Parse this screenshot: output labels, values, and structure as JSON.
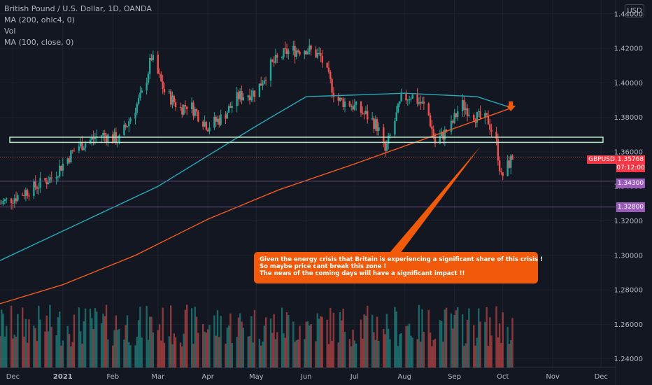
{
  "header": {
    "symbol_line": "British Pound / U.S. Dollar, 1D, OANDA",
    "indicators": [
      "MA (200, ohlc4, 0)",
      "Vol",
      "MA (100, close, 0)"
    ]
  },
  "currency_badge": "USD",
  "price_axis_ticks": [
    "1.44000",
    "1.42000",
    "1.40000",
    "1.38000",
    "1.36000",
    "1.34000",
    "1.32000",
    "1.30000",
    "1.28000",
    "1.26000",
    "1.24000"
  ],
  "time_axis_ticks": [
    "Dec",
    "2021",
    "Feb",
    "Mar",
    "Apr",
    "May",
    "Jun",
    "Jul",
    "Aug",
    "Sep",
    "Oct",
    "Nov",
    "Dec"
  ],
  "symbol_tag": "GBPUSD",
  "last_price": "1.35768",
  "countdown": "07:12:00",
  "level_labels": [
    "1.34300",
    "1.32800"
  ],
  "annotation": {
    "lines": [
      "Given the energy crisis that Britain is experiencing a significant share of this crisis !",
      "So maybe price cant break this zone !",
      "The news of the coming days will have a significant impact !!"
    ]
  },
  "colors": {
    "up": "#26a69a",
    "down": "#ef5350",
    "ma200": "#f05a22",
    "ma100": "#2aa7b8",
    "zone": "#b7e4c7",
    "callout": "#f05a0a",
    "level_tag": "#9b5bb8"
  },
  "chart_data": {
    "type": "candlestick",
    "ylim": [
      1.235,
      1.446
    ],
    "x_range": [
      "2020-11-23",
      "2021-12-10"
    ],
    "resistance_zone": [
      1.3655,
      1.3685
    ],
    "horizontal_levels": [
      1.357,
      1.343,
      1.328
    ],
    "ma100_path": [
      [
        1.297,
        "2020-11-23"
      ],
      [
        1.34,
        "2021-03-01"
      ],
      [
        1.375,
        "2021-05-01"
      ],
      [
        1.392,
        "2021-06-01"
      ],
      [
        1.394,
        "2021-08-01"
      ],
      [
        1.392,
        "2021-09-15"
      ],
      [
        1.386,
        "2021-10-05"
      ]
    ],
    "ma200_path": [
      [
        1.272,
        "2020-11-23"
      ],
      [
        1.283,
        "2021-01-01"
      ],
      [
        1.3,
        "2021-02-15"
      ],
      [
        1.321,
        "2021-04-01"
      ],
      [
        1.338,
        "2021-05-15"
      ],
      [
        1.353,
        "2021-07-01"
      ],
      [
        1.368,
        "2021-08-15"
      ],
      [
        1.38,
        "2021-09-20"
      ],
      [
        1.385,
        "2021-10-05"
      ]
    ],
    "price_path": [
      [
        1.33,
        "2020-11-23"
      ],
      [
        1.335,
        "2020-12-05"
      ],
      [
        1.345,
        "2020-12-25"
      ],
      [
        1.363,
        "2021-01-10"
      ],
      [
        1.37,
        "2021-01-25"
      ],
      [
        1.367,
        "2021-02-05"
      ],
      [
        1.38,
        "2021-02-12"
      ],
      [
        1.395,
        "2021-02-20"
      ],
      [
        1.415,
        "2021-02-25"
      ],
      [
        1.395,
        "2021-03-05"
      ],
      [
        1.385,
        "2021-03-15"
      ],
      [
        1.388,
        "2021-03-20"
      ],
      [
        1.375,
        "2021-04-01"
      ],
      [
        1.38,
        "2021-04-10"
      ],
      [
        1.392,
        "2021-04-20"
      ],
      [
        1.395,
        "2021-05-01"
      ],
      [
        1.41,
        "2021-05-10"
      ],
      [
        1.418,
        "2021-05-20"
      ],
      [
        1.42,
        "2021-06-01"
      ],
      [
        1.415,
        "2021-06-10"
      ],
      [
        1.39,
        "2021-06-20"
      ],
      [
        1.388,
        "2021-06-28"
      ],
      [
        1.38,
        "2021-07-10"
      ],
      [
        1.375,
        "2021-07-15"
      ],
      [
        1.36,
        "2021-07-20"
      ],
      [
        1.39,
        "2021-07-30"
      ],
      [
        1.393,
        "2021-08-05"
      ],
      [
        1.385,
        "2021-08-15"
      ],
      [
        1.365,
        "2021-08-20"
      ],
      [
        1.375,
        "2021-08-30"
      ],
      [
        1.388,
        "2021-09-05"
      ],
      [
        1.38,
        "2021-09-15"
      ],
      [
        1.378,
        "2021-09-22"
      ],
      [
        1.365,
        "2021-09-27"
      ],
      [
        1.345,
        "2021-09-30"
      ],
      [
        1.35,
        "2021-10-03"
      ],
      [
        1.357,
        "2021-10-07"
      ]
    ]
  }
}
